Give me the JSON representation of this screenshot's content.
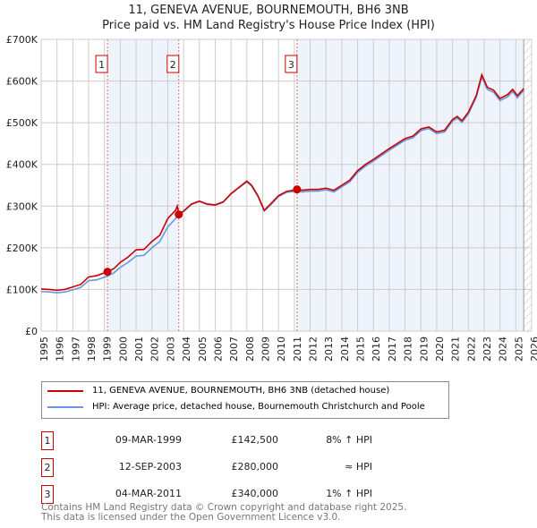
{
  "chart_data": {
    "type": "line",
    "title": "11, GENEVA AVENUE, BOURNEMOUTH, BH6 3NB",
    "subtitle": "Price paid vs. HM Land Registry's House Price Index (HPI)",
    "xlim": [
      1995,
      2026
    ],
    "ylim": [
      0,
      700000
    ],
    "yticks": [
      {
        "v": 0,
        "label": "£0"
      },
      {
        "v": 100000,
        "label": "£100K"
      },
      {
        "v": 200000,
        "label": "£200K"
      },
      {
        "v": 300000,
        "label": "£300K"
      },
      {
        "v": 400000,
        "label": "£400K"
      },
      {
        "v": 500000,
        "label": "£500K"
      },
      {
        "v": 600000,
        "label": "£600K"
      },
      {
        "v": 700000,
        "label": "£700K"
      }
    ],
    "xticks": [
      "1995",
      "1996",
      "1997",
      "1998",
      "1999",
      "2000",
      "2001",
      "2002",
      "2003",
      "2004",
      "2005",
      "2006",
      "2007",
      "2008",
      "2009",
      "2010",
      "2011",
      "2012",
      "2013",
      "2014",
      "2015",
      "2016",
      "2017",
      "2018",
      "2019",
      "2020",
      "2021",
      "2022",
      "2023",
      "2024",
      "2025",
      "2026"
    ],
    "grid": true,
    "series": [
      {
        "name": "11, GENEVA AVENUE, BOURNEMOUTH, BH6 3NB (detached house)",
        "color": "#cc0000",
        "x": [
          1995,
          1995.5,
          1996,
          1996.5,
          1997,
          1997.5,
          1998,
          1998.5,
          1999.19,
          1999.6,
          2000,
          2000.5,
          2001,
          2001.5,
          2002,
          2002.5,
          2003,
          2003.5,
          2003.6,
          2003.7,
          2004,
          2004.5,
          2005,
          2005.5,
          2006,
          2006.5,
          2007,
          2007.5,
          2008,
          2008.3,
          2008.7,
          2009.1,
          2009.5,
          2010,
          2010.5,
          2011.17,
          2011.5,
          2012,
          2012.5,
          2013,
          2013.5,
          2014,
          2014.5,
          2015,
          2015.5,
          2016,
          2016.5,
          2017,
          2017.5,
          2018,
          2018.5,
          2019,
          2019.5,
          2020,
          2020.5,
          2021,
          2021.3,
          2021.6,
          2022,
          2022.5,
          2022.85,
          2023.2,
          2023.6,
          2024,
          2024.5,
          2024.8,
          2025.1,
          2025.5
        ],
        "y": [
          101000,
          100000,
          98000,
          100000,
          106000,
          112000,
          130000,
          133000,
          142500,
          150000,
          165000,
          178000,
          195000,
          196000,
          215000,
          230000,
          270000,
          290000,
          300000,
          280000,
          288000,
          305000,
          312000,
          305000,
          303000,
          310000,
          330000,
          345000,
          360000,
          350000,
          325000,
          290000,
          305000,
          325000,
          335000,
          340000,
          338000,
          340000,
          340000,
          343000,
          338000,
          350000,
          362000,
          385000,
          400000,
          412000,
          425000,
          438000,
          450000,
          462000,
          468000,
          485000,
          490000,
          478000,
          482000,
          508000,
          515000,
          505000,
          525000,
          565000,
          615000,
          585000,
          578000,
          558000,
          568000,
          580000,
          565000,
          582000
        ]
      },
      {
        "name": "HPI: Average price, detached house, Bournemouth Christchurch and Poole",
        "color": "#6699dd",
        "x": [
          1995,
          1995.5,
          1996,
          1996.5,
          1997,
          1997.5,
          1998,
          1998.5,
          1999.19,
          1999.6,
          2000,
          2000.5,
          2001,
          2001.5,
          2002,
          2002.5,
          2003,
          2003.5,
          2003.7,
          2004,
          2004.5,
          2005,
          2005.5,
          2006,
          2006.5,
          2007,
          2007.5,
          2008,
          2008.3,
          2008.7,
          2009.1,
          2009.5,
          2010,
          2010.5,
          2011.17,
          2011.5,
          2012,
          2012.5,
          2013,
          2013.5,
          2014,
          2014.5,
          2015,
          2015.5,
          2016,
          2016.5,
          2017,
          2017.5,
          2018,
          2018.5,
          2019,
          2019.5,
          2020,
          2020.5,
          2021,
          2021.3,
          2021.6,
          2022,
          2022.5,
          2022.85,
          2023.2,
          2023.6,
          2024,
          2024.5,
          2024.8,
          2025.1,
          2025.5
        ],
        "y": [
          95000,
          94000,
          92000,
          94000,
          99000,
          105000,
          121000,
          123000,
          132000,
          140000,
          153000,
          165000,
          180000,
          182000,
          200000,
          215000,
          250000,
          270000,
          281000,
          287000,
          304000,
          311000,
          304000,
          302000,
          309000,
          329000,
          344000,
          358000,
          348000,
          323000,
          288000,
          303000,
          323000,
          333000,
          336000,
          334000,
          336000,
          336000,
          339000,
          334000,
          346000,
          358000,
          381000,
          396000,
          408000,
          421000,
          434000,
          446000,
          458000,
          464000,
          481000,
          486000,
          474000,
          478000,
          504000,
          511000,
          501000,
          521000,
          561000,
          610000,
          580000,
          573000,
          553000,
          563000,
          575000,
          560000,
          578000
        ]
      }
    ],
    "sales": [
      {
        "n": "1",
        "x": 1999.19,
        "y": 142500
      },
      {
        "n": "2",
        "x": 2003.7,
        "y": 280000
      },
      {
        "n": "3",
        "x": 2011.17,
        "y": 340000
      }
    ],
    "shaded": [
      [
        1999.19,
        2003.7
      ],
      [
        2011.17,
        2025.5
      ]
    ],
    "forecast_from": 2025.5,
    "legend": "bottom"
  },
  "table": [
    {
      "n": "1",
      "date": "09-MAR-1999",
      "price": "£142,500",
      "hpi": "8% ↑ HPI"
    },
    {
      "n": "2",
      "date": "12-SEP-2003",
      "price": "£280,000",
      "hpi": "≈ HPI"
    },
    {
      "n": "3",
      "date": "04-MAR-2011",
      "price": "£340,000",
      "hpi": "1% ↑ HPI"
    }
  ],
  "footer": [
    "Contains HM Land Registry data © Crown copyright and database right 2025.",
    "This data is licensed under the Open Government Licence v3.0."
  ]
}
